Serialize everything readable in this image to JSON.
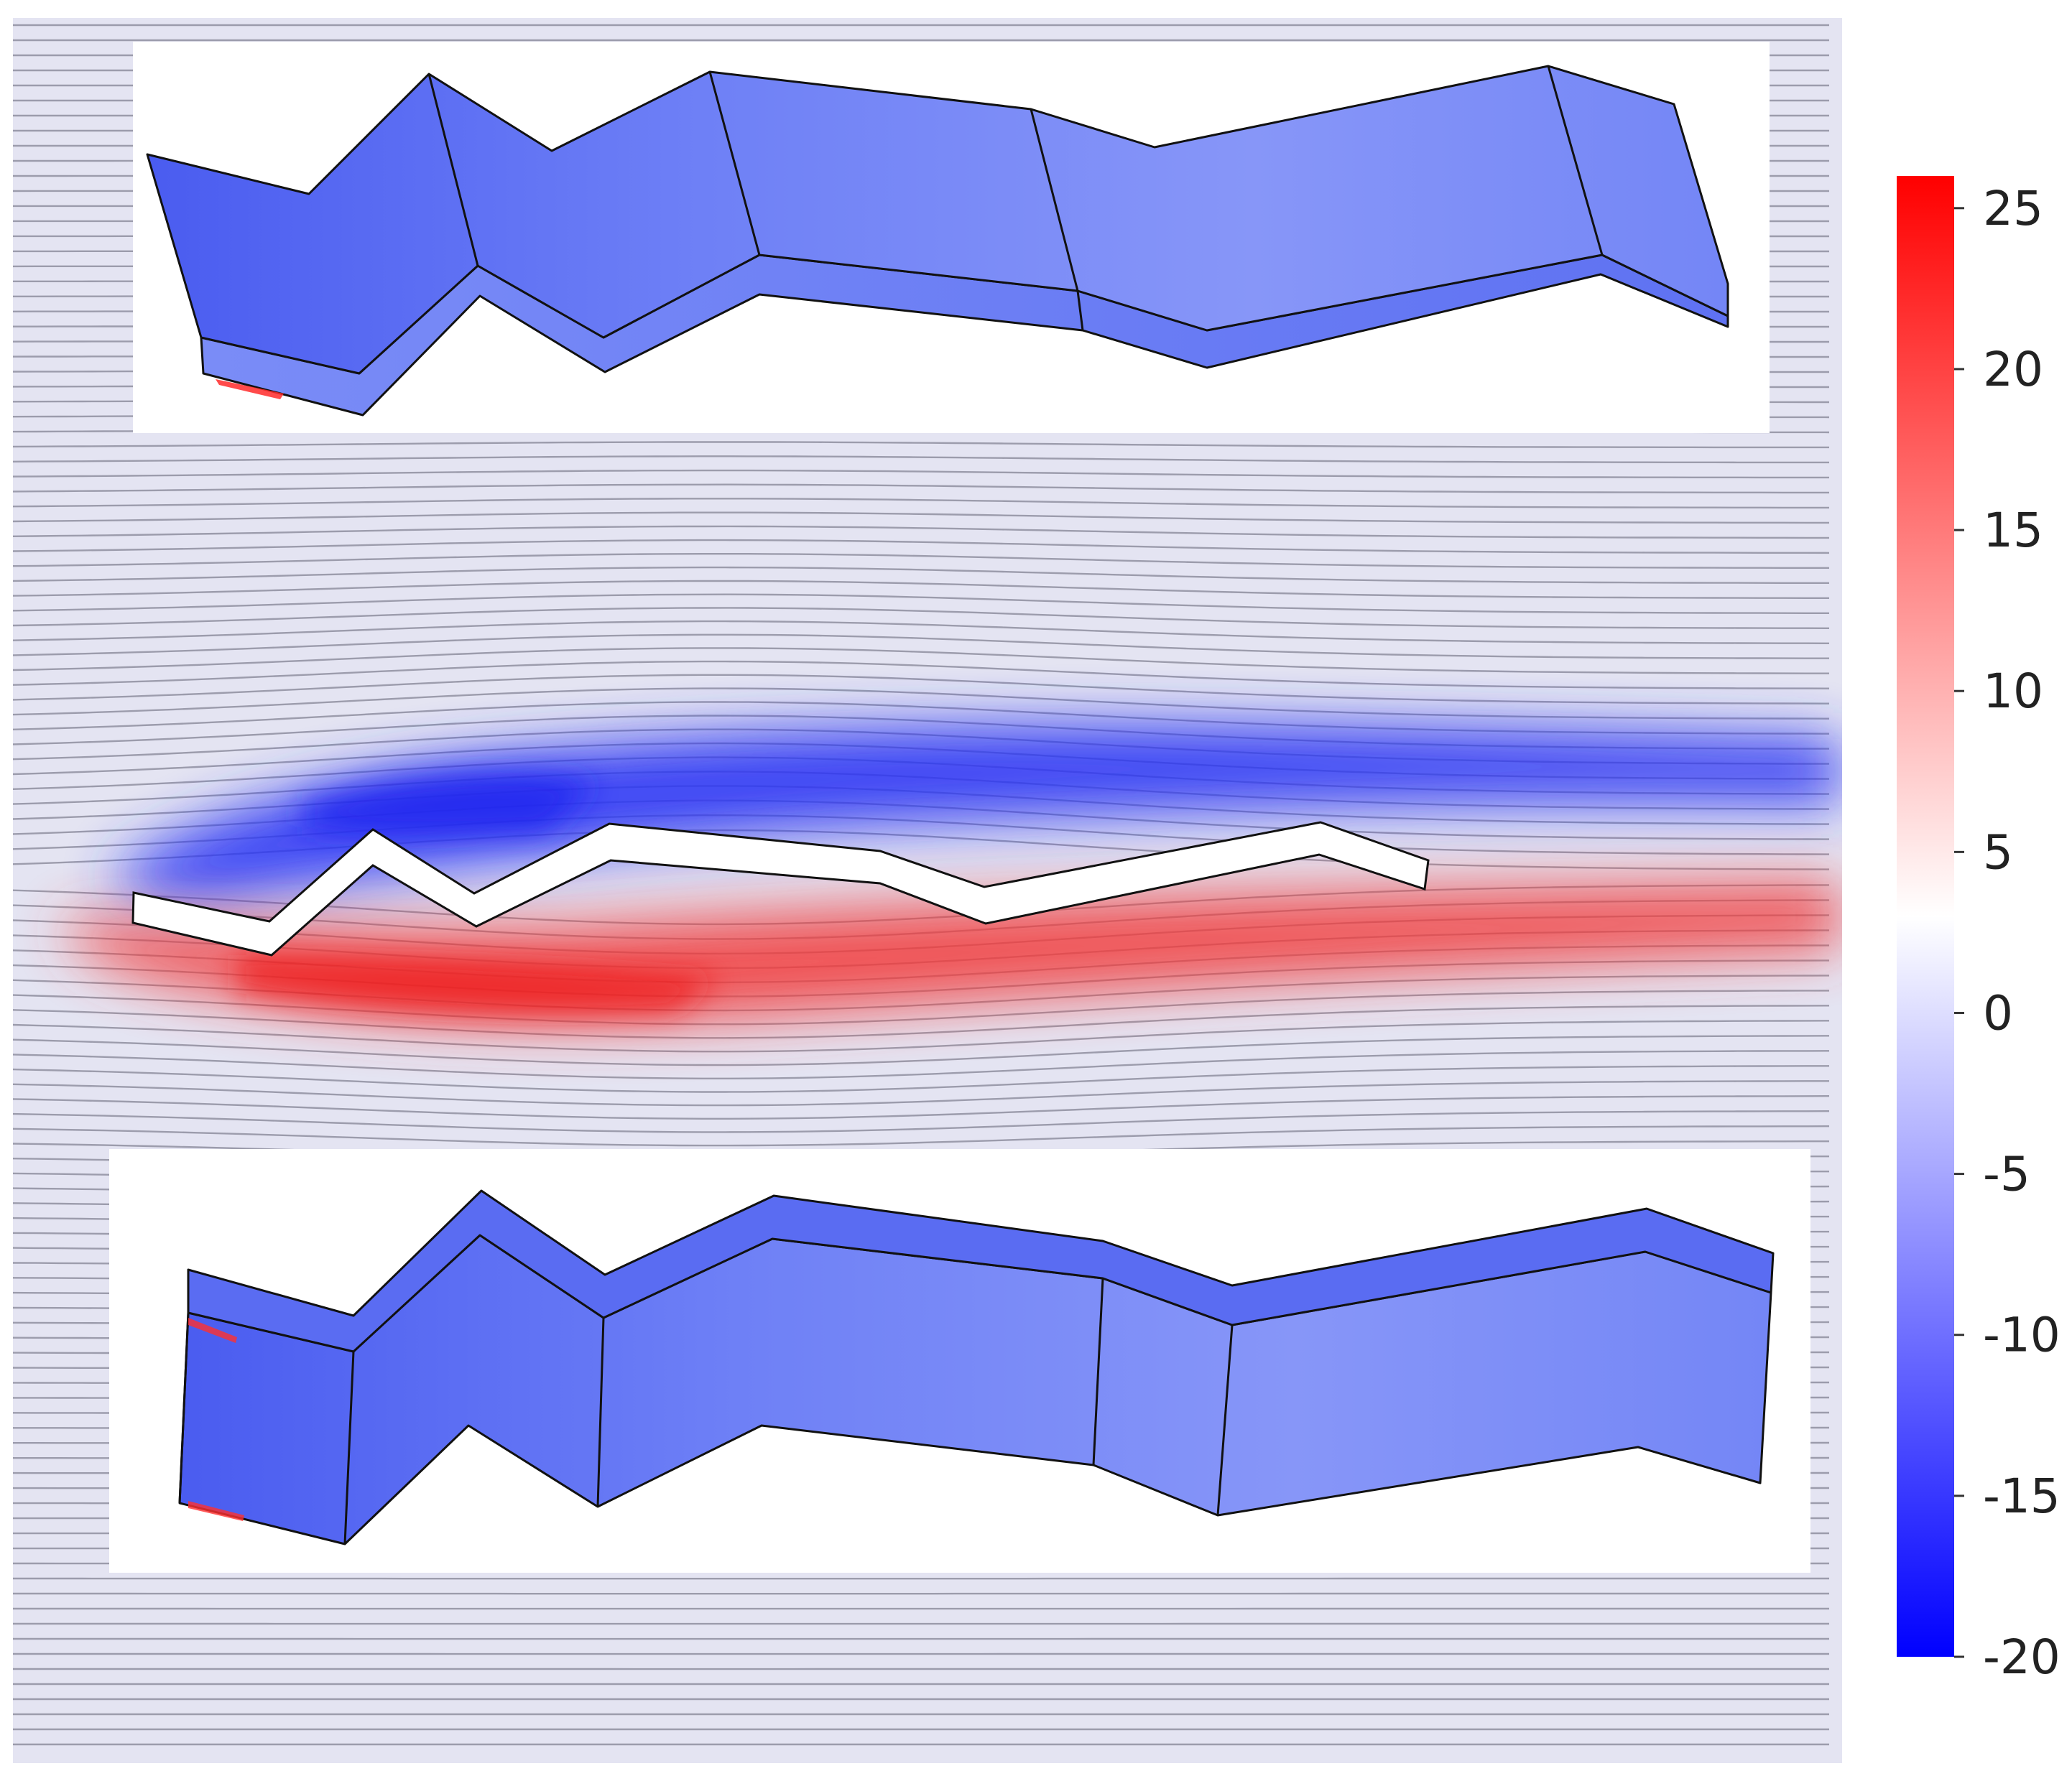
{
  "colors": {
    "field_background": "#e4e4f2",
    "streamline": "#9c9cac",
    "scale_min": "#0000ff",
    "scale_mid": "#ffffff",
    "scale_max": "#ff0000",
    "inset_background": "#ffffff",
    "profile_fill": "#ffffff",
    "outline": "#111111"
  },
  "colorbar": {
    "min": -20,
    "max": 26,
    "ticks": [
      "25",
      "20",
      "15",
      "10",
      "5",
      "0",
      "-5",
      "-10",
      "-15",
      "-20"
    ]
  },
  "panels": [
    "top-inset-3d-view",
    "middle-flow-field",
    "bottom-inset-3d-view"
  ]
}
